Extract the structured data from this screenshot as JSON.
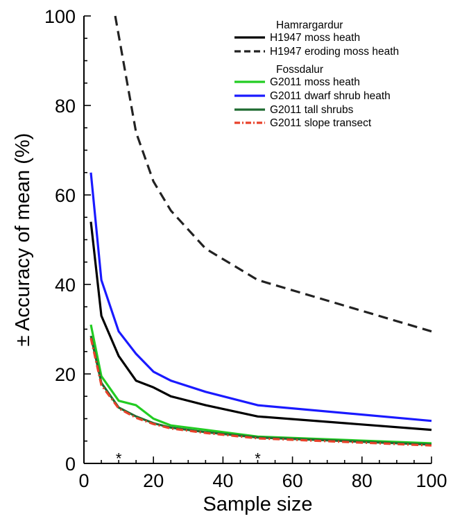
{
  "chart_data": {
    "type": "line",
    "xlabel": "Sample size",
    "ylabel": "± Accuracy of mean (%)",
    "xlim": [
      0,
      100
    ],
    "ylim": [
      0,
      100
    ],
    "x_ticks": [
      0,
      20,
      40,
      60,
      80,
      100
    ],
    "y_ticks": [
      0,
      20,
      40,
      60,
      80,
      100
    ],
    "grid": false,
    "legend_position": "top-right",
    "legend_groups": [
      {
        "title": "Hamrargardur",
        "series_indices": [
          0,
          1
        ]
      },
      {
        "title": "Fossdalur",
        "series_indices": [
          2,
          3,
          4,
          5
        ]
      }
    ],
    "series": [
      {
        "name": "H1947 moss heath",
        "color": "#000000",
        "dash": "solid",
        "x": [
          2,
          5,
          10,
          15,
          20,
          25,
          35,
          50,
          100
        ],
        "y": [
          54,
          33,
          24,
          18.5,
          17,
          15,
          13,
          10.5,
          7.5
        ]
      },
      {
        "name": "H1947 eroding moss heath",
        "color": "#222222",
        "dash": "dashed",
        "x": [
          9,
          15,
          20,
          25,
          35,
          50,
          100
        ],
        "y": [
          100,
          74,
          63,
          56.5,
          48,
          41,
          29.5
        ]
      },
      {
        "name": "G2011 moss heath",
        "color": "#22cc22",
        "dash": "solid",
        "x": [
          2,
          5,
          10,
          15,
          20,
          25,
          35,
          50,
          100
        ],
        "y": [
          31,
          19.5,
          14,
          13,
          10,
          8.5,
          7.5,
          6,
          4.5
        ]
      },
      {
        "name": "G2011 dwarf shrub heath",
        "color": "#1a1aff",
        "dash": "solid",
        "x": [
          2,
          5,
          10,
          15,
          20,
          25,
          35,
          50,
          100
        ],
        "y": [
          65,
          41,
          29.5,
          24.5,
          20.5,
          18.5,
          16,
          13,
          9.5
        ]
      },
      {
        "name": "G2011 tall shrubs",
        "color": "#1e6b30",
        "dash": "solid",
        "x": [
          2,
          5,
          10,
          15,
          20,
          25,
          35,
          50,
          100
        ],
        "y": [
          28.5,
          18,
          12.5,
          10.5,
          9,
          8,
          7,
          5.8,
          4.2
        ]
      },
      {
        "name": "G2011 slope transect",
        "color": "#e8412a",
        "dash": "dashdot",
        "x": [
          2,
          5,
          10,
          15,
          20,
          25,
          35,
          50,
          100
        ],
        "y": [
          28,
          17.5,
          12.3,
          10.2,
          8.8,
          7.8,
          6.8,
          5.6,
          4.0
        ]
      }
    ],
    "annotations": [
      {
        "text": "*",
        "x": 10,
        "y": 1.5
      },
      {
        "text": "*",
        "x": 50,
        "y": 1.5
      }
    ]
  }
}
